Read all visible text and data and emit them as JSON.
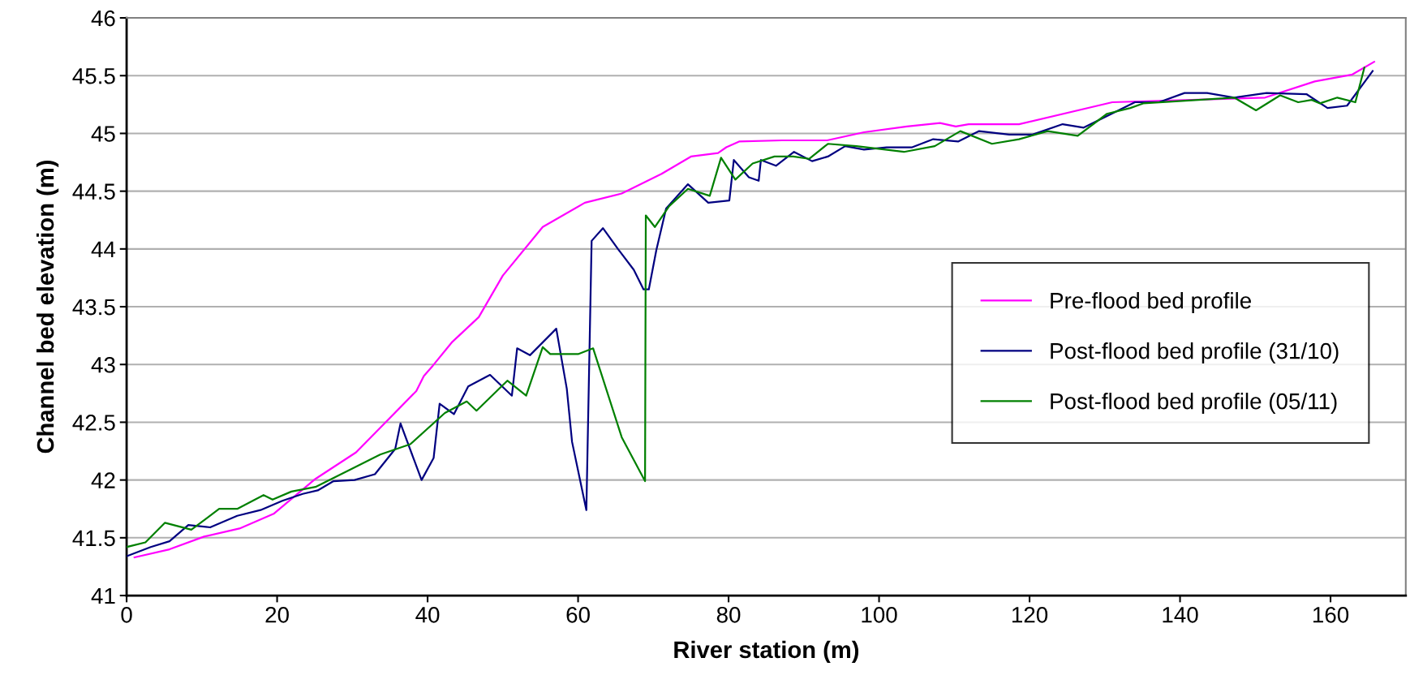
{
  "chart_data": {
    "type": "line",
    "xlabel": "River station (m)",
    "ylabel": "Channel bed elevation (m)",
    "xlim": [
      0,
      170
    ],
    "xticks": [
      0,
      20,
      40,
      60,
      80,
      100,
      120,
      140,
      160
    ],
    "ylim": [
      41,
      46
    ],
    "yticks": [
      41,
      {
        "value": 41.5,
        "label": "41.5"
      },
      42,
      {
        "value": 42.5,
        "label": "42.5"
      },
      43,
      {
        "value": 43.5,
        "label": "43.5"
      },
      44,
      {
        "value": 44.5,
        "label": "44.5"
      },
      45,
      {
        "value": 45.5,
        "label": "45.5"
      },
      46
    ],
    "grid": "y",
    "legend": "center right",
    "marker": "none",
    "line_style": "solid",
    "series": [
      {
        "name": "Pre-flood bed profile",
        "color": "#ff00ff",
        "x": [
          1.05,
          5.7,
          10.3,
          15.0,
          19.6,
          25.1,
          30.5,
          38.5,
          39.5,
          40.7,
          43.2,
          46.8,
          50.0,
          55.3,
          60.9,
          65.8,
          71.1,
          75.0,
          78.6,
          79.7,
          81.4,
          87.1,
          93.1,
          98.0,
          103.7,
          108.1,
          110.2,
          111.9,
          118.6,
          131.0,
          151.3,
          157.9,
          162.9,
          165.8
        ],
        "values": [
          41.33,
          41.4,
          41.51,
          41.58,
          41.71,
          42.01,
          42.24,
          42.77,
          42.9,
          42.99,
          43.19,
          43.41,
          43.77,
          44.19,
          44.4,
          44.48,
          44.65,
          44.8,
          44.83,
          44.88,
          44.93,
          44.94,
          44.94,
          45.01,
          45.06,
          45.09,
          45.06,
          45.08,
          45.08,
          45.27,
          45.31,
          45.45,
          45.51,
          45.62
        ]
      },
      {
        "name": "Post-flood bed profile (31/10)",
        "color": "#000080",
        "x": [
          0,
          3.2,
          5.7,
          8.2,
          11.1,
          14.7,
          17.8,
          20.7,
          23.4,
          25.4,
          27.5,
          30.3,
          33.0,
          35.7,
          36.4,
          39.2,
          40.8,
          41.6,
          43.5,
          45.4,
          48.3,
          51.2,
          51.9,
          53.6,
          57.1,
          58.5,
          59.2,
          61.1,
          61.8,
          63.3,
          65.3,
          67.4,
          68.7,
          69.4,
          70.4,
          71.7,
          74.6,
          77.3,
          80.1,
          80.7,
          82.7,
          84.0,
          84.3,
          86.3,
          88.7,
          91.1,
          93.2,
          95.5,
          98.0,
          101.0,
          104.4,
          107.2,
          110.5,
          113.3,
          117.3,
          120.4,
          124.4,
          127.2,
          134.0,
          137.2,
          140.6,
          143.6,
          147.2,
          151.5,
          156.8,
          159.6,
          162.2,
          165.6
        ],
        "values": [
          41.34,
          41.42,
          41.47,
          41.61,
          41.59,
          41.69,
          41.74,
          41.82,
          41.88,
          41.91,
          41.99,
          42.0,
          42.05,
          42.27,
          42.49,
          42.0,
          42.19,
          42.66,
          42.57,
          42.81,
          42.91,
          42.73,
          43.14,
          43.08,
          43.31,
          42.79,
          42.33,
          41.74,
          44.07,
          44.18,
          44.0,
          43.82,
          43.65,
          43.65,
          43.99,
          44.35,
          44.56,
          44.4,
          44.42,
          44.77,
          44.62,
          44.59,
          44.77,
          44.72,
          44.84,
          44.76,
          44.8,
          44.89,
          44.86,
          44.88,
          44.88,
          44.95,
          44.93,
          45.02,
          44.99,
          44.99,
          45.08,
          45.05,
          45.27,
          45.27,
          45.35,
          45.35,
          45.31,
          45.35,
          45.34,
          45.22,
          45.24,
          45.54
        ]
      },
      {
        "name": "Post-flood bed profile (05/11)",
        "color": "#008000",
        "x": [
          0,
          2.5,
          5.1,
          8.6,
          12.3,
          14.7,
          18.2,
          19.4,
          21.9,
          25.1,
          30.0,
          33.7,
          37.7,
          42.3,
          45.2,
          46.5,
          50.6,
          53.1,
          55.3,
          56.3,
          60.0,
          62.0,
          65.8,
          68.9,
          69.0,
          70.2,
          72.1,
          74.6,
          77.5,
          79.0,
          80.9,
          83.2,
          86.1,
          88.6,
          90.7,
          93.2,
          97.0,
          103.3,
          107.4,
          110.8,
          115.0,
          118.6,
          122.4,
          126.4,
          130.3,
          133.4,
          135.1,
          147.2,
          150.1,
          153.3,
          155.7,
          157.5,
          158.6,
          160.9,
          163.3,
          164.5
        ],
        "values": [
          41.42,
          41.46,
          41.63,
          41.57,
          41.75,
          41.75,
          41.87,
          41.83,
          41.9,
          41.94,
          42.1,
          42.22,
          42.31,
          42.58,
          42.68,
          42.6,
          42.86,
          42.73,
          43.15,
          43.09,
          43.09,
          43.14,
          42.37,
          41.99,
          44.29,
          44.19,
          44.37,
          44.52,
          44.46,
          44.79,
          44.6,
          44.74,
          44.8,
          44.8,
          44.78,
          44.91,
          44.89,
          44.84,
          44.89,
          45.02,
          44.91,
          44.95,
          45.02,
          44.98,
          45.17,
          45.22,
          45.26,
          45.31,
          45.2,
          45.33,
          45.27,
          45.29,
          45.26,
          45.31,
          45.27,
          45.57
        ]
      }
    ]
  }
}
